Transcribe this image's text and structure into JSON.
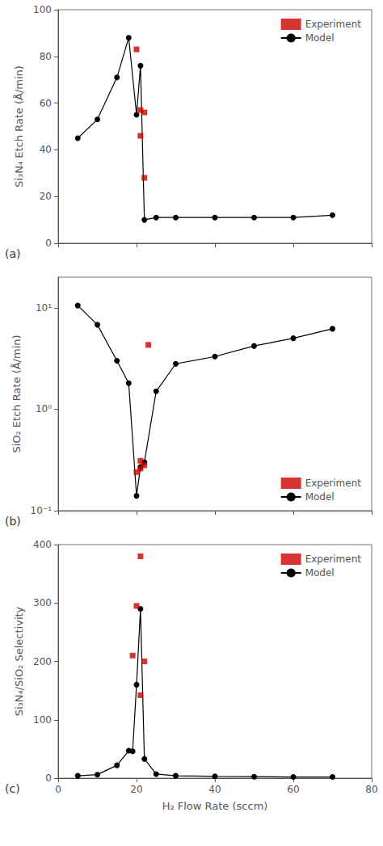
{
  "chart_data": [
    {
      "type": "line",
      "ylabel": "Si₃N₄ Etch Rate (Å/min)",
      "annotations": [
        "(a)"
      ],
      "xlim": [
        0,
        80
      ],
      "xticks": [
        0,
        20,
        40,
        60,
        80
      ],
      "ylim": [
        0,
        100
      ],
      "yticks": [
        0,
        20,
        40,
        60,
        80,
        100
      ],
      "grid": false,
      "legend": "upper right",
      "tick_labels": "y",
      "series": [
        {
          "name": "Experiment",
          "type": "scatter",
          "marker": "square",
          "color": "#cc0000",
          "x": [
            20,
            21,
            21,
            22,
            22
          ],
          "values": [
            83,
            57,
            46,
            56,
            28
          ]
        },
        {
          "name": "Model",
          "type": "line",
          "marker": "circle",
          "color": "#000000",
          "x": [
            5,
            10,
            15,
            18,
            20,
            21,
            22,
            25,
            30,
            40,
            50,
            60,
            70
          ],
          "values": [
            45,
            53,
            71,
            88,
            55,
            76,
            10,
            11,
            11,
            11,
            11,
            11,
            12
          ]
        }
      ]
    },
    {
      "type": "line",
      "ylabel": "SiO₂ Etch Rate (Å/min)",
      "annotations": [
        "(b)"
      ],
      "log": "y",
      "xlim": [
        0,
        80
      ],
      "xticks": [
        0,
        20,
        40,
        60,
        80
      ],
      "ylim": [
        0.1,
        20
      ],
      "yticks": [
        {
          "value": 0.1,
          "label": "10⁻¹"
        },
        {
          "value": 1,
          "label": "10⁰"
        },
        {
          "value": 10,
          "label": "10¹"
        }
      ],
      "grid": false,
      "legend": "lower right",
      "tick_labels": "y",
      "series": [
        {
          "name": "Experiment",
          "type": "scatter",
          "marker": "square",
          "color": "#cc0000",
          "x": [
            22,
            21,
            21,
            20,
            23
          ],
          "values": [
            0.28,
            0.26,
            0.31,
            0.24,
            4.3
          ]
        },
        {
          "name": "Model",
          "type": "line",
          "marker": "circle",
          "color": "#000000",
          "x": [
            5,
            10,
            15,
            18,
            20,
            21,
            22,
            25,
            30,
            40,
            50,
            60,
            70
          ],
          "values": [
            10.5,
            6.8,
            3.0,
            1.8,
            0.14,
            0.27,
            0.3,
            1.5,
            2.8,
            3.3,
            4.2,
            5.0,
            6.2
          ]
        }
      ]
    },
    {
      "type": "line",
      "xlabel": "H₂ Flow Rate (sccm)",
      "ylabel": "Si₃N₄/SiO₂ Selectivity",
      "annotations": [
        "(c)"
      ],
      "xlim": [
        0,
        80
      ],
      "xticks": [
        0,
        20,
        40,
        60,
        80
      ],
      "ylim": [
        0,
        400
      ],
      "yticks": [
        0,
        100,
        200,
        300,
        400
      ],
      "grid": false,
      "legend": "upper right",
      "series": [
        {
          "name": "Experiment",
          "type": "scatter",
          "marker": "square",
          "color": "#cc0000",
          "x": [
            19,
            20,
            21,
            21,
            22
          ],
          "values": [
            210,
            295,
            142,
            380,
            200
          ]
        },
        {
          "name": "Model",
          "type": "line",
          "marker": "circle",
          "color": "#000000",
          "x": [
            5,
            10,
            15,
            18,
            19,
            20,
            21,
            22,
            25,
            30,
            40,
            50,
            60,
            70
          ],
          "values": [
            4,
            6,
            22,
            47,
            46,
            160,
            290,
            33,
            7,
            4,
            3,
            2.5,
            2,
            2
          ]
        }
      ]
    }
  ]
}
